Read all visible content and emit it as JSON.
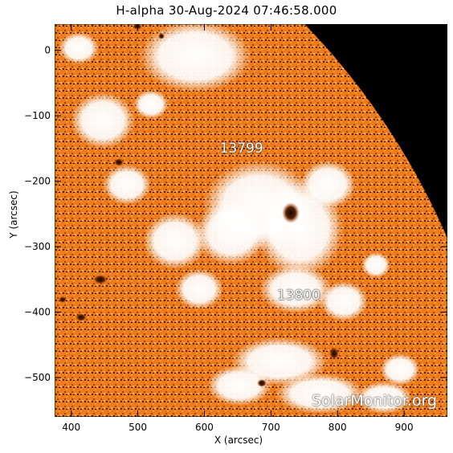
{
  "title": "H-alpha 30-Aug-2024 07:46:58.000",
  "axes": {
    "xlabel": "X (arcsec)",
    "ylabel": "Y (arcsec)",
    "xlim": [
      375,
      965
    ],
    "ylim": [
      -560,
      40
    ],
    "xticks": [
      "400",
      "500",
      "600",
      "700",
      "800",
      "900"
    ],
    "yticks": [
      "0",
      "−100",
      "−200",
      "−300",
      "−400",
      "−500"
    ]
  },
  "regions": [
    {
      "label": "13799",
      "x": 652,
      "y": -150
    },
    {
      "label": "13800",
      "x": 738,
      "y": -375
    }
  ],
  "watermark": "SolarMonitor.org",
  "colors": {
    "disk": "#f0801c",
    "disk_light": "#f8a860",
    "plage": "#ffffff",
    "dark": "#2a1408",
    "space": "#000000"
  }
}
